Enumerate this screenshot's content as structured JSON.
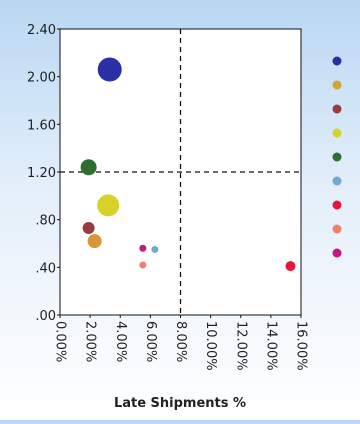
{
  "chart_data": {
    "type": "scatter",
    "title": "",
    "xlabel": "Late Shipments %",
    "ylabel": "",
    "xlim": [
      0,
      16
    ],
    "ylim": [
      0,
      2.4
    ],
    "x_ticks": [
      "0.00%",
      "2.00%",
      "4.00%",
      "6.00%",
      "8.00%",
      "10.00%",
      "12.00%",
      "14.00%",
      "16.00%"
    ],
    "y_ticks": [
      ".00",
      ".40",
      ".80",
      "1.20",
      "1.60",
      "2.00",
      "2.40"
    ],
    "reference_lines": {
      "x": 8,
      "y": 1.2
    },
    "points": [
      {
        "x": 3.3,
        "y": 2.06,
        "size": 12,
        "color": "#2b2fa5"
      },
      {
        "x": 1.9,
        "y": 1.24,
        "size": 8,
        "color": "#2e6e2e"
      },
      {
        "x": 3.2,
        "y": 0.92,
        "size": 11,
        "color": "#d6d228"
      },
      {
        "x": 1.9,
        "y": 0.73,
        "size": 6,
        "color": "#9b3a3a"
      },
      {
        "x": 2.3,
        "y": 0.62,
        "size": 7,
        "color": "#d9953a"
      },
      {
        "x": 5.5,
        "y": 0.56,
        "size": 3.5,
        "color": "#c21880"
      },
      {
        "x": 6.3,
        "y": 0.55,
        "size": 3.5,
        "color": "#6fa9d3"
      },
      {
        "x": 5.5,
        "y": 0.42,
        "size": 3.5,
        "color": "#ee7f6a"
      },
      {
        "x": 15.3,
        "y": 0.41,
        "size": 5,
        "color": "#e8153a"
      }
    ],
    "legend": {
      "placement": "right",
      "colors": [
        "#2b2fa5",
        "#d6a230",
        "#9b3a3a",
        "#d6d228",
        "#2e6e2e",
        "#6fa9d3",
        "#e8153a",
        "#ee7f6a",
        "#c21880"
      ]
    }
  }
}
